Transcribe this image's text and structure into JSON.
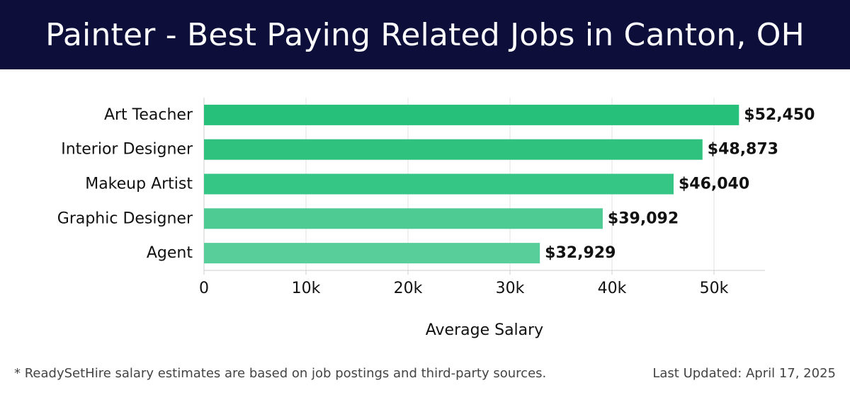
{
  "header": {
    "title": "Painter - Best Paying Related Jobs in Canton, OH"
  },
  "chart_data": {
    "type": "bar",
    "orientation": "horizontal",
    "categories": [
      "Art Teacher",
      "Interior Designer",
      "Makeup Artist",
      "Graphic Designer",
      "Agent"
    ],
    "values": [
      52450,
      48873,
      46040,
      39092,
      32929
    ],
    "value_labels": [
      "$52,450",
      "$48,873",
      "$46,040",
      "$39,092",
      "$32,929"
    ],
    "xlabel": "Average Salary",
    "ylabel": "",
    "xlim": [
      0,
      55000
    ],
    "xticks": [
      0,
      10000,
      20000,
      30000,
      40000,
      50000
    ],
    "xtick_labels": [
      "0",
      "10k",
      "20k",
      "30k",
      "40k",
      "50k"
    ],
    "grid": "vertical",
    "bar_colors": [
      "#27c07a",
      "#2ec27e",
      "#35c584",
      "#4dcb93",
      "#58ce9a"
    ]
  },
  "footer": {
    "note": "* ReadySetHire salary estimates are based on job postings and third-party sources.",
    "updated": "Last Updated: April 17, 2025"
  }
}
